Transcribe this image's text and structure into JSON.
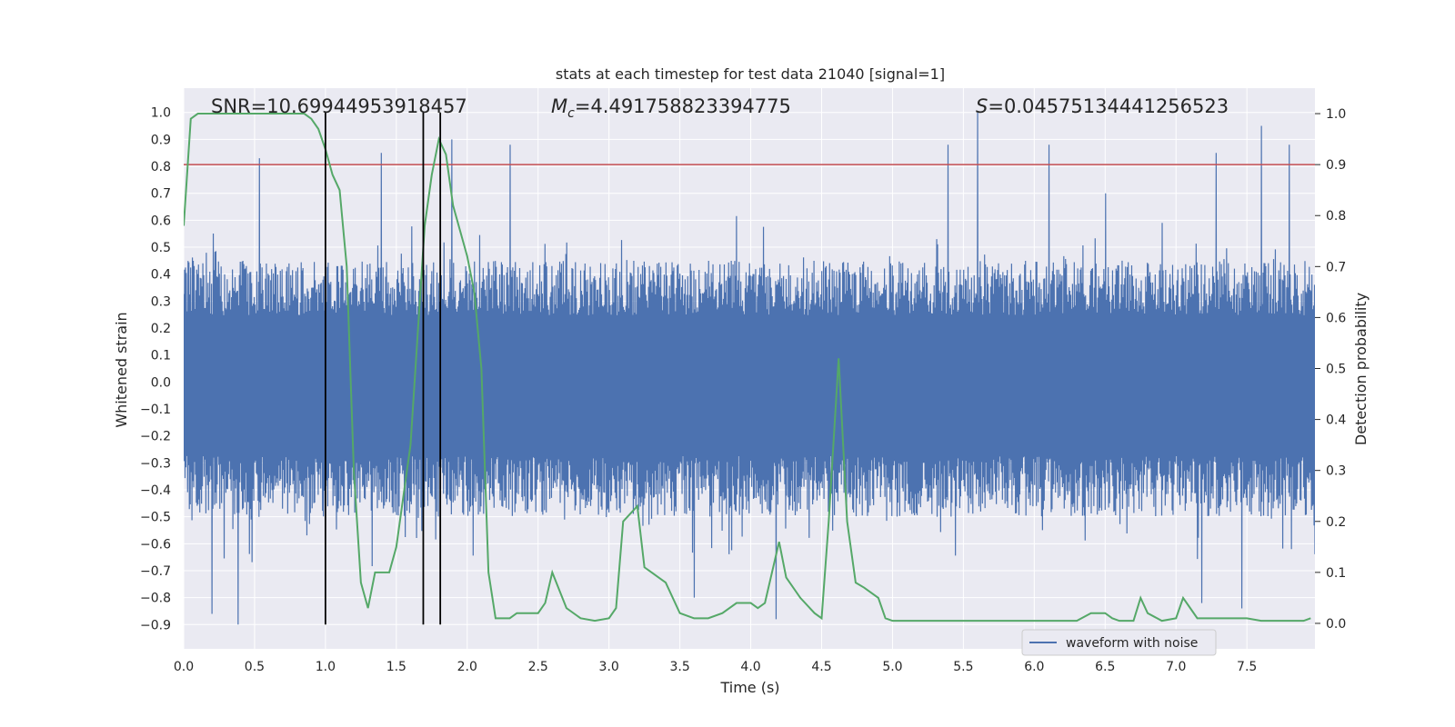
{
  "chart_data": {
    "type": "line",
    "title": "stats at each timestep for test data 21040 [signal=1]",
    "xlabel": "Time (s)",
    "ylabel": "Whitened strain",
    "y2label": "Detection probability",
    "xlim": [
      0.0,
      7.98
    ],
    "ylim": [
      -0.99,
      1.09
    ],
    "y2lim": [
      -0.05,
      1.05
    ],
    "xticks": [
      0.0,
      0.5,
      1.0,
      1.5,
      2.0,
      2.5,
      3.0,
      3.5,
      4.0,
      4.5,
      5.0,
      5.5,
      6.0,
      6.5,
      7.0,
      7.5
    ],
    "yticks": [
      -0.9,
      -0.8,
      -0.7,
      -0.6,
      -0.5,
      -0.4,
      -0.3,
      -0.2,
      -0.1,
      0.0,
      0.1,
      0.2,
      0.3,
      0.4,
      0.5,
      0.6,
      0.7,
      0.8,
      0.9,
      1.0
    ],
    "y2ticks": [
      0.0,
      0.1,
      0.2,
      0.3,
      0.4,
      0.5,
      0.6,
      0.7,
      0.8,
      0.9,
      1.0
    ],
    "annotations": {
      "snr": "SNR=10.69944953918457",
      "mc_symbol": "M",
      "mc_sub": "c",
      "mc_value": "=4.491758823394775",
      "s_symbol": "S",
      "s_value": "=0.04575134441256523"
    },
    "legend": {
      "label": "waveform with noise",
      "position": "lower-right"
    },
    "threshold_line": {
      "y2": 0.9,
      "color": "#c44e52"
    },
    "vertical_lines": {
      "x": [
        1.0,
        1.69,
        1.81
      ],
      "y_range": [
        -0.9,
        1.0
      ],
      "color": "#000000"
    },
    "waveform": {
      "name": "waveform with noise",
      "color": "#4c72b0",
      "typical_peak": 0.45,
      "typical_trough": -0.5,
      "spikes": [
        {
          "x": 0.38,
          "y": -0.9
        },
        {
          "x": 0.53,
          "y": 0.83
        },
        {
          "x": 0.2,
          "y": -0.86
        },
        {
          "x": 1.39,
          "y": 0.85
        },
        {
          "x": 1.89,
          "y": 0.9
        },
        {
          "x": 2.3,
          "y": 0.88
        },
        {
          "x": 4.18,
          "y": -0.88
        },
        {
          "x": 5.39,
          "y": 0.88
        },
        {
          "x": 5.6,
          "y": 1.0
        },
        {
          "x": 6.1,
          "y": 0.88
        },
        {
          "x": 7.28,
          "y": 0.85
        },
        {
          "x": 7.6,
          "y": 0.95
        },
        {
          "x": 7.8,
          "y": 0.88
        },
        {
          "x": 7.18,
          "y": -0.82
        },
        {
          "x": 7.46,
          "y": -0.84
        },
        {
          "x": 3.6,
          "y": -0.8
        },
        {
          "x": 6.5,
          "y": 0.7
        }
      ]
    },
    "series": [
      {
        "name": "Detection probability",
        "color": "#55a868",
        "axis": "right",
        "x": [
          0.0,
          0.05,
          0.1,
          0.15,
          0.3,
          0.5,
          0.7,
          0.85,
          0.9,
          0.95,
          1.0,
          1.05,
          1.1,
          1.15,
          1.2,
          1.25,
          1.3,
          1.35,
          1.4,
          1.45,
          1.5,
          1.6,
          1.7,
          1.75,
          1.8,
          1.85,
          1.9,
          2.0,
          2.05,
          2.1,
          2.15,
          2.2,
          2.25,
          2.3,
          2.35,
          2.5,
          2.55,
          2.6,
          2.7,
          2.8,
          2.9,
          3.0,
          3.05,
          3.1,
          3.2,
          3.25,
          3.3,
          3.4,
          3.5,
          3.6,
          3.7,
          3.8,
          3.9,
          4.0,
          4.05,
          4.1,
          4.15,
          4.2,
          4.25,
          4.35,
          4.45,
          4.5,
          4.55,
          4.62,
          4.68,
          4.74,
          4.8,
          4.9,
          4.95,
          5.0,
          5.2,
          5.4,
          5.6,
          5.8,
          6.0,
          6.2,
          6.3,
          6.4,
          6.5,
          6.55,
          6.6,
          6.7,
          6.75,
          6.8,
          6.9,
          7.0,
          7.05,
          7.1,
          7.15,
          7.3,
          7.4,
          7.5,
          7.6,
          7.7,
          7.8,
          7.9,
          7.95
        ],
        "y": [
          0.78,
          0.99,
          1.0,
          1.0,
          1.0,
          1.0,
          1.0,
          1.0,
          0.99,
          0.97,
          0.93,
          0.88,
          0.85,
          0.7,
          0.3,
          0.08,
          0.03,
          0.1,
          0.1,
          0.1,
          0.15,
          0.35,
          0.78,
          0.88,
          0.95,
          0.92,
          0.82,
          0.72,
          0.65,
          0.5,
          0.1,
          0.01,
          0.01,
          0.01,
          0.02,
          0.02,
          0.04,
          0.1,
          0.03,
          0.01,
          0.005,
          0.01,
          0.03,
          0.2,
          0.23,
          0.11,
          0.1,
          0.08,
          0.02,
          0.01,
          0.01,
          0.02,
          0.04,
          0.04,
          0.03,
          0.04,
          0.1,
          0.16,
          0.09,
          0.05,
          0.02,
          0.01,
          0.2,
          0.52,
          0.2,
          0.08,
          0.07,
          0.05,
          0.01,
          0.005,
          0.005,
          0.005,
          0.005,
          0.005,
          0.005,
          0.005,
          0.005,
          0.02,
          0.02,
          0.01,
          0.005,
          0.005,
          0.05,
          0.02,
          0.005,
          0.01,
          0.05,
          0.03,
          0.01,
          0.01,
          0.01,
          0.01,
          0.005,
          0.005,
          0.005,
          0.005,
          0.01
        ]
      }
    ]
  }
}
